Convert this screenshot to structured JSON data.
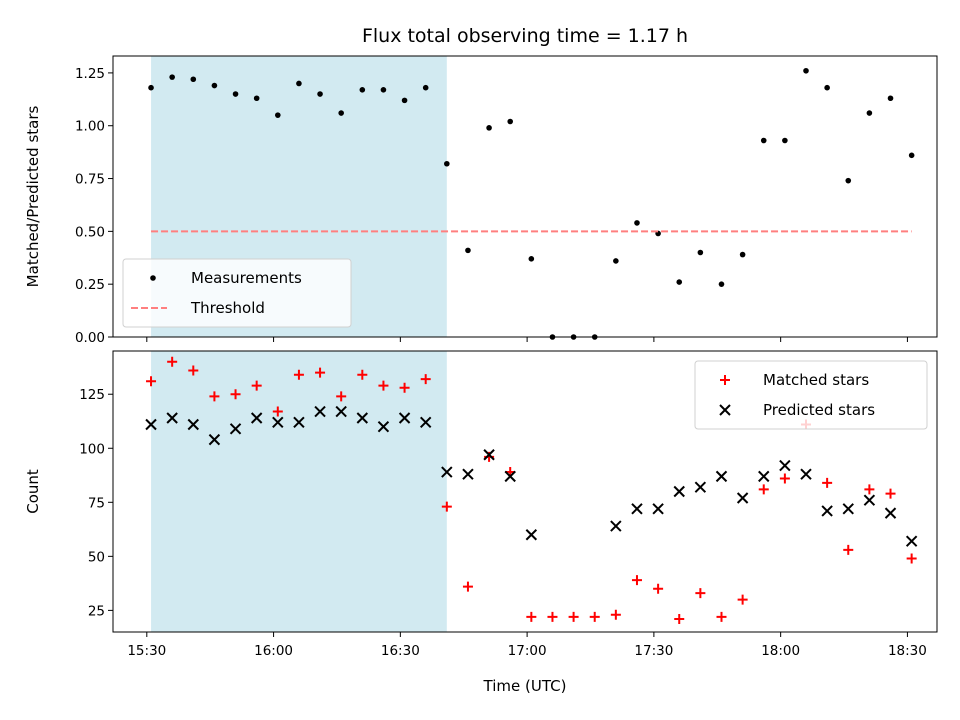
{
  "chart_data": [
    {
      "type": "scatter",
      "title": "Flux total observing time = 1.17 h",
      "xlabel": "",
      "ylabel": "Matched/Predicted stars",
      "xlim": [
        "15:22",
        "18:37"
      ],
      "ylim": [
        0,
        1.33
      ],
      "x_ticks": [
        "15:30",
        "16:00",
        "16:30",
        "17:00",
        "17:30",
        "18:00",
        "18:30"
      ],
      "x_ticks_labeled": false,
      "y_ticks": [
        "0.00",
        "0.25",
        "0.50",
        "0.75",
        "1.00",
        "1.25"
      ],
      "shaded_interval": [
        "15:31",
        "16:41"
      ],
      "shade_color": "#add8e6",
      "legend": {
        "placement": "lower-left",
        "entries": [
          "Measurements",
          "Threshold"
        ]
      },
      "series": [
        {
          "name": "Measurements",
          "marker": "dot",
          "color": "#000000",
          "x": [
            "15:31",
            "15:36",
            "15:41",
            "15:46",
            "15:51",
            "15:56",
            "16:01",
            "16:06",
            "16:11",
            "16:16",
            "16:21",
            "16:26",
            "16:31",
            "16:36",
            "16:41",
            "16:46",
            "16:51",
            "16:56",
            "17:01",
            "17:06",
            "17:11",
            "17:16",
            "17:21",
            "17:26",
            "17:31",
            "17:36",
            "17:41",
            "17:46",
            "17:51",
            "17:56",
            "18:01",
            "18:06",
            "18:11",
            "18:16",
            "18:21",
            "18:26",
            "18:31"
          ],
          "y": [
            1.18,
            1.23,
            1.22,
            1.19,
            1.15,
            1.13,
            1.05,
            1.2,
            1.15,
            1.06,
            1.17,
            1.17,
            1.12,
            1.18,
            0.82,
            0.41,
            0.99,
            1.02,
            0.37,
            0.0,
            0.0,
            0.0,
            0.36,
            0.54,
            0.49,
            0.26,
            0.4,
            0.25,
            0.39,
            0.93,
            0.93,
            1.26,
            1.18,
            0.74,
            1.06,
            1.13,
            0.86
          ]
        },
        {
          "name": "Threshold",
          "marker": "dashed-line",
          "color": "#ff7f7f",
          "x": [
            "15:31",
            "18:31"
          ],
          "y": [
            0.5,
            0.5
          ]
        }
      ]
    },
    {
      "type": "scatter",
      "title": "",
      "xlabel": "Time (UTC)",
      "ylabel": "Count",
      "xlim": [
        "15:22",
        "18:37"
      ],
      "ylim": [
        15,
        145
      ],
      "x_ticks": [
        "15:30",
        "16:00",
        "16:30",
        "17:00",
        "17:30",
        "18:00",
        "18:30"
      ],
      "y_ticks": [
        "25",
        "50",
        "75",
        "100",
        "125"
      ],
      "shaded_interval": [
        "15:31",
        "16:41"
      ],
      "shade_color": "#add8e6",
      "legend": {
        "placement": "upper-right",
        "entries": [
          "Matched stars",
          "Predicted stars"
        ]
      },
      "series": [
        {
          "name": "Matched stars",
          "marker": "plus",
          "color": "#ff0000",
          "x": [
            "15:31",
            "15:36",
            "15:41",
            "15:46",
            "15:51",
            "15:56",
            "16:01",
            "16:06",
            "16:11",
            "16:16",
            "16:21",
            "16:26",
            "16:31",
            "16:36",
            "16:41",
            "16:46",
            "16:51",
            "16:56",
            "17:01",
            "17:06",
            "17:11",
            "17:16",
            "17:21",
            "17:26",
            "17:31",
            "17:36",
            "17:41",
            "17:46",
            "17:51",
            "17:56",
            "18:01",
            "18:06",
            "18:11",
            "18:16",
            "18:21",
            "18:26",
            "18:31"
          ],
          "y": [
            131,
            140,
            136,
            124,
            125,
            129,
            117,
            134,
            135,
            124,
            134,
            129,
            128,
            132,
            73,
            36,
            96,
            89,
            22,
            22,
            22,
            22,
            23,
            39,
            35,
            21,
            33,
            22,
            30,
            81,
            86,
            111,
            84,
            53,
            81,
            79,
            49
          ]
        },
        {
          "name": "Predicted stars",
          "marker": "x",
          "color": "#000000",
          "x": [
            "15:31",
            "15:36",
            "15:41",
            "15:46",
            "15:51",
            "15:56",
            "16:01",
            "16:06",
            "16:11",
            "16:16",
            "16:21",
            "16:26",
            "16:31",
            "16:36",
            "16:41",
            "16:46",
            "16:51",
            "16:56",
            "17:01",
            "17:21",
            "17:26",
            "17:31",
            "17:36",
            "17:41",
            "17:46",
            "17:51",
            "17:56",
            "18:01",
            "18:06",
            "18:11",
            "18:16",
            "18:21",
            "18:26",
            "18:31"
          ],
          "y": [
            111,
            114,
            111,
            104,
            109,
            114,
            112,
            112,
            117,
            117,
            114,
            110,
            114,
            112,
            89,
            88,
            97,
            87,
            60,
            64,
            72,
            72,
            80,
            82,
            87,
            77,
            87,
            92,
            88,
            71,
            72,
            76,
            70,
            57
          ]
        }
      ]
    }
  ]
}
